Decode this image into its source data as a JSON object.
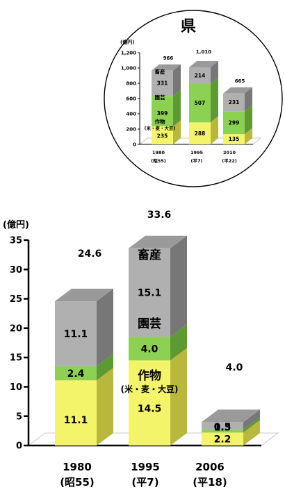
{
  "colors": {
    "crops_front": "#f4f46a",
    "crops_top": "#e6e652",
    "crops_side": "#b8b83c",
    "hort_front": "#8cd152",
    "hort_top": "#7cc244",
    "hort_side": "#5e9a34",
    "live_front": "#b0b0b0",
    "live_top": "#9a9a9a",
    "live_side": "#777777",
    "axis": "#000000",
    "grid_panel": "#ffffff"
  },
  "chart_data": [
    {
      "type": "bar",
      "stacked": true,
      "title": "県",
      "ylabel": "(億円)",
      "ylim": [
        0,
        1200
      ],
      "yticks": [
        "0",
        "200",
        "400",
        "600",
        "800",
        "1,000",
        "1,200"
      ],
      "categories": [
        "1980",
        "1995",
        "2010"
      ],
      "category_sublabels": [
        "(昭55)",
        "(平7)",
        "(平22)"
      ],
      "series": [
        {
          "name": "作物",
          "name_sub": "(米・麦・大豆)",
          "values": [
            235,
            288,
            135
          ],
          "labels": [
            "235",
            "288",
            "135"
          ]
        },
        {
          "name": "園芸",
          "values": [
            399,
            507,
            299
          ],
          "labels": [
            "399",
            "507",
            "299"
          ]
        },
        {
          "name": "畜産",
          "values": [
            331,
            214,
            231
          ],
          "labels": [
            "331",
            "214",
            "231"
          ]
        }
      ],
      "totals": [
        "966",
        "1,010",
        "665"
      ]
    },
    {
      "type": "bar",
      "stacked": true,
      "title": "",
      "ylabel": "(億円)",
      "ylim": [
        0,
        35
      ],
      "yticks": [
        "0",
        "5",
        "10",
        "15",
        "20",
        "25",
        "30",
        "35"
      ],
      "categories": [
        "1980",
        "1995",
        "2006"
      ],
      "category_sublabels": [
        "(昭55)",
        "(平7)",
        "(平18)"
      ],
      "series": [
        {
          "name": "作物",
          "name_sub": "(米・麦・大豆)",
          "values": [
            11.1,
            14.5,
            2.2
          ],
          "labels": [
            "11.1",
            "14.5",
            "2.2"
          ]
        },
        {
          "name": "園芸",
          "values": [
            2.4,
            4.0,
            0.5
          ],
          "labels": [
            "2.4",
            "4.0",
            "0.5"
          ]
        },
        {
          "name": "畜産",
          "values": [
            11.1,
            15.1,
            1.3
          ],
          "labels": [
            "11.1",
            "15.1",
            "1.3"
          ]
        }
      ],
      "totals": [
        "24.6",
        "33.6",
        "4.0"
      ]
    }
  ]
}
